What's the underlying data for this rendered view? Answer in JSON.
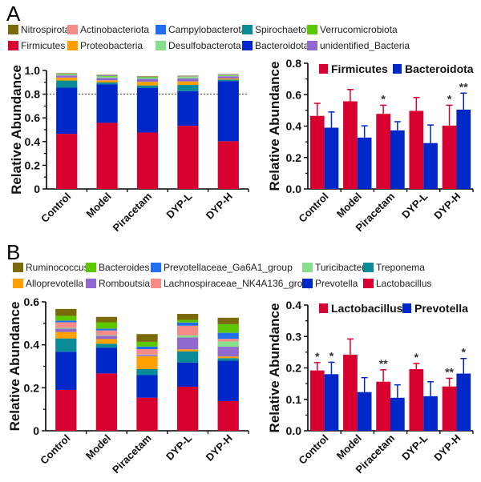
{
  "panels": [
    {
      "label": "A"
    },
    {
      "label": "B"
    }
  ],
  "legends": [
    {
      "items": [
        {
          "name": "Nitrospirota",
          "color": "#7a6a0a"
        },
        {
          "name": "Actinobacteriota",
          "color": "#f58a86"
        },
        {
          "name": "Campylobacterota",
          "color": "#1f6ff0"
        },
        {
          "name": "Spirochaetota",
          "color": "#0a8b98"
        },
        {
          "name": "Verrucomicrobiota",
          "color": "#5cc800"
        },
        {
          "name": "Firmicutes",
          "color": "#d8002e"
        },
        {
          "name": "Proteobacteria",
          "color": "#ffa000"
        },
        {
          "name": "Desulfobacterota",
          "color": "#84e08c"
        },
        {
          "name": "Bacteroidota",
          "color": "#0027c8"
        },
        {
          "name": "unidentified_Bacteria",
          "color": "#9068d0"
        }
      ]
    },
    {
      "items": [
        {
          "name": "Ruminococcus",
          "color": "#7a6a0a"
        },
        {
          "name": "Bacteroides",
          "color": "#5cc800"
        },
        {
          "name": "Prevotellaceae_Ga6A1_group",
          "color": "#1f6ff0"
        },
        {
          "name": "Turicibacter",
          "color": "#84e08c"
        },
        {
          "name": "Treponema",
          "color": "#0a8b98"
        },
        {
          "name": "Alloprevotella",
          "color": "#ffa000"
        },
        {
          "name": "Romboutsia",
          "color": "#9068d0"
        },
        {
          "name": "Lachnospiraceae_NK4A136_group",
          "color": "#f58a86"
        },
        {
          "name": "Prevotella",
          "color": "#0027c8"
        },
        {
          "name": "Lactobacillus",
          "color": "#d8002e"
        }
      ]
    }
  ],
  "chart_data": [
    {
      "id": "A-stacked",
      "type": "bar",
      "stacked": true,
      "title": "",
      "xlabel": "",
      "ylabel": "Relative Abundance",
      "ylim": [
        0,
        1.0
      ],
      "yticks": [
        "0",
        "0.2",
        "0.4",
        "0.6",
        "0.8",
        "1.0"
      ],
      "ytick_values": [
        0,
        0.2,
        0.4,
        0.6,
        0.8,
        1.0
      ],
      "reference_line": 0.8,
      "categories": [
        "Control",
        "Model",
        "Piracetam",
        "DYP-L",
        "DYP-H"
      ],
      "series": [
        {
          "name": "Firmicutes",
          "color": "#d8002e",
          "values": [
            0.465,
            0.558,
            0.476,
            0.533,
            0.403
          ]
        },
        {
          "name": "Bacteroidota",
          "color": "#0027c8",
          "values": [
            0.39,
            0.326,
            0.378,
            0.293,
            0.508
          ]
        },
        {
          "name": "Spirochaetota",
          "color": "#0a8b98",
          "values": [
            0.06,
            0.015,
            0.02,
            0.052,
            0.012
          ]
        },
        {
          "name": "Proteobacteria",
          "color": "#ffa000",
          "values": [
            0.025,
            0.018,
            0.03,
            0.03,
            0.01
          ]
        },
        {
          "name": "unidentified_Bacteria",
          "color": "#9068d0",
          "values": [
            0.018,
            0.02,
            0.025,
            0.025,
            0.018
          ]
        },
        {
          "name": "Desulfobacterota",
          "color": "#84e08c",
          "values": [
            0.008,
            0.012,
            0.01,
            0.012,
            0.006
          ]
        },
        {
          "name": "Verrucomicrobiota",
          "color": "#5cc800",
          "values": [
            0.004,
            0.004,
            0.006,
            0.003,
            0.004
          ]
        },
        {
          "name": "Campylobacterota",
          "color": "#1f6ff0",
          "values": [
            0.002,
            0.003,
            0.002,
            0.002,
            0.002
          ]
        },
        {
          "name": "Actinobacteriota",
          "color": "#f58a86",
          "values": [
            0.003,
            0.003,
            0.003,
            0.003,
            0.003
          ]
        },
        {
          "name": "Nitrospirota",
          "color": "#7a6a0a",
          "values": [
            0.003,
            0.004,
            0.003,
            0.003,
            0.003
          ]
        }
      ]
    },
    {
      "id": "A-grouped",
      "type": "bar",
      "title": "",
      "xlabel": "",
      "ylabel": "Relative Abundance",
      "ylim": [
        0,
        0.8
      ],
      "yticks": [
        "0.0",
        "0.2",
        "0.4",
        "0.6",
        "0.8"
      ],
      "ytick_values": [
        0,
        0.2,
        0.4,
        0.6,
        0.8
      ],
      "legend_position": "top",
      "categories": [
        "Control",
        "Model",
        "Piracetam",
        "DYP-L",
        "DYP-H"
      ],
      "series": [
        {
          "name": "Firmicutes",
          "color": "#d8002e",
          "values": [
            0.465,
            0.558,
            0.478,
            0.497,
            0.403
          ],
          "errors": [
            0.08,
            0.075,
            0.055,
            0.085,
            0.13
          ],
          "significance": [
            "",
            "",
            "*",
            "",
            "*"
          ]
        },
        {
          "name": "Bacteroidota",
          "color": "#0027c8",
          "values": [
            0.39,
            0.327,
            0.373,
            0.292,
            0.505
          ],
          "errors": [
            0.1,
            0.075,
            0.055,
            0.115,
            0.105
          ],
          "significance": [
            "",
            "",
            "",
            "",
            "**"
          ]
        }
      ]
    },
    {
      "id": "B-stacked",
      "type": "bar",
      "stacked": true,
      "title": "",
      "xlabel": "",
      "ylabel": "Relative Abundance",
      "ylim": [
        0,
        0.6
      ],
      "yticks": [
        "0",
        "0.2",
        "0.4",
        "0.6"
      ],
      "ytick_values": [
        0,
        0.2,
        0.4,
        0.6
      ],
      "categories": [
        "Control",
        "Model",
        "Piracetam",
        "DYP-L",
        "DYP-H"
      ],
      "series": [
        {
          "name": "Lactobacillus",
          "color": "#d8002e",
          "values": [
            0.19,
            0.267,
            0.154,
            0.205,
            0.138
          ]
        },
        {
          "name": "Prevotella",
          "color": "#0027c8",
          "values": [
            0.178,
            0.12,
            0.105,
            0.112,
            0.188
          ]
        },
        {
          "name": "Treponema",
          "color": "#0a8b98",
          "values": [
            0.062,
            0.018,
            0.028,
            0.052,
            0.012
          ]
        },
        {
          "name": "Alloprevotella",
          "color": "#ffa000",
          "values": [
            0.03,
            0.022,
            0.06,
            0.01,
            0.008
          ]
        },
        {
          "name": "Romboutsia",
          "color": "#9068d0",
          "values": [
            0.015,
            0.015,
            0.006,
            0.055,
            0.045
          ]
        },
        {
          "name": "Turicibacter",
          "color": "#84e08c",
          "values": [
            0.004,
            0.003,
            0.002,
            0.01,
            0.025
          ]
        },
        {
          "name": "Lachnospiraceae_NK4A136_group",
          "color": "#f58a86",
          "values": [
            0.026,
            0.022,
            0.025,
            0.045,
            0.012
          ]
        },
        {
          "name": "Prevotellaceae_Ga6A1_group",
          "color": "#1f6ff0",
          "values": [
            0.008,
            0.008,
            0.012,
            0.015,
            0.028
          ]
        },
        {
          "name": "Bacteroides",
          "color": "#5cc800",
          "values": [
            0.022,
            0.03,
            0.022,
            0.012,
            0.04
          ]
        },
        {
          "name": "Ruminococcus",
          "color": "#7a6a0a",
          "values": [
            0.032,
            0.025,
            0.036,
            0.028,
            0.03
          ]
        }
      ]
    },
    {
      "id": "B-grouped",
      "type": "bar",
      "title": "",
      "xlabel": "",
      "ylabel": "Relative Abundance",
      "ylim": [
        0,
        0.4
      ],
      "yticks": [
        "0.0",
        "0.1",
        "0.2",
        "0.3",
        "0.4"
      ],
      "ytick_values": [
        0,
        0.1,
        0.2,
        0.3,
        0.4
      ],
      "legend_position": "top",
      "categories": [
        "Control",
        "Model",
        "Piracetam",
        "DYP-L",
        "DYP-H"
      ],
      "series": [
        {
          "name": "Lactobacillus",
          "color": "#d8002e",
          "values": [
            0.192,
            0.242,
            0.156,
            0.196,
            0.141
          ],
          "errors": [
            0.025,
            0.05,
            0.038,
            0.018,
            0.026
          ],
          "significance": [
            "*",
            "",
            "**",
            "*",
            "**"
          ]
        },
        {
          "name": "Prevotella",
          "color": "#0027c8",
          "values": [
            0.18,
            0.123,
            0.105,
            0.11,
            0.182
          ],
          "errors": [
            0.038,
            0.046,
            0.041,
            0.046,
            0.048
          ],
          "significance": [
            "*",
            "",
            "",
            "",
            "*"
          ]
        }
      ]
    }
  ]
}
